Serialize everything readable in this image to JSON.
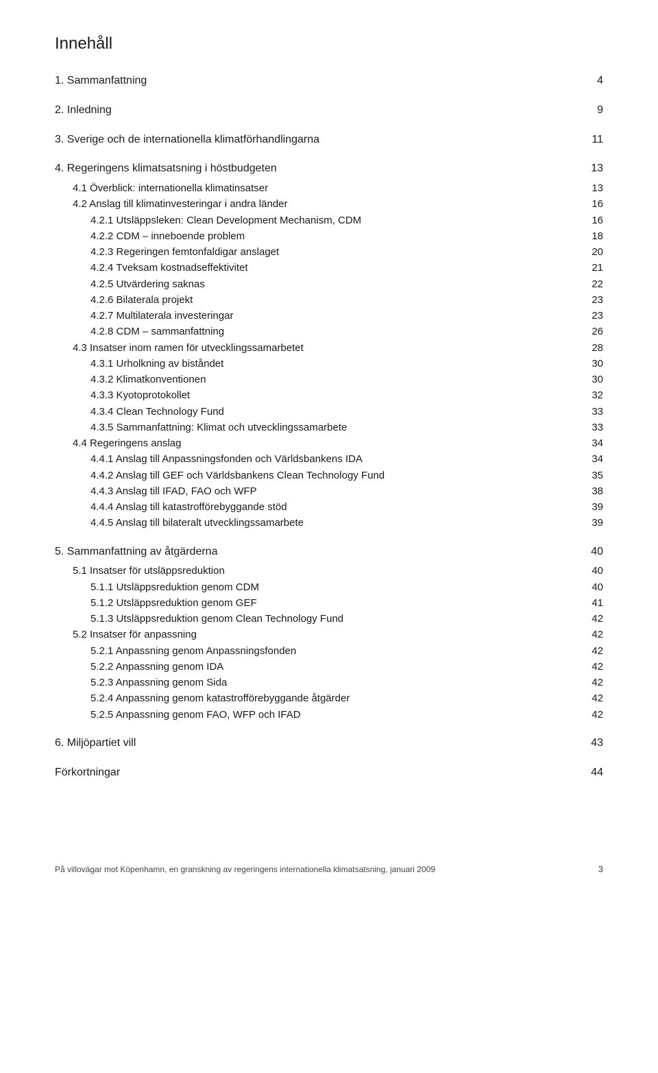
{
  "title": "Innehåll",
  "toc": [
    {
      "level": 1,
      "label": "1. Sammanfattning",
      "page": "4"
    },
    {
      "level": 1,
      "label": "2. Inledning",
      "page": "9"
    },
    {
      "level": 1,
      "label": "3. Sverige och de internationella klimatförhandlingarna",
      "page": "11"
    },
    {
      "level": 1,
      "label": "4. Regeringens klimatsatsning i höstbudgeten",
      "page": "13"
    },
    {
      "level": 2,
      "label": "4.1 Överblick: internationella klimatinsatser",
      "page": "13"
    },
    {
      "level": 2,
      "label": "4.2 Anslag till klimatinvesteringar i andra länder",
      "page": "16"
    },
    {
      "level": 3,
      "label": "4.2.1 Utsläppsleken: Clean Development Mechanism, CDM",
      "page": "16"
    },
    {
      "level": 3,
      "label": "4.2.2 CDM – inneboende problem",
      "page": "18"
    },
    {
      "level": 3,
      "label": "4.2.3 Regeringen femtonfaldigar anslaget",
      "page": "20"
    },
    {
      "level": 3,
      "label": "4.2.4 Tveksam kostnadseffektivitet",
      "page": "21"
    },
    {
      "level": 3,
      "label": "4.2.5 Utvärdering saknas",
      "page": "22"
    },
    {
      "level": 3,
      "label": "4.2.6 Bilaterala projekt",
      "page": "23"
    },
    {
      "level": 3,
      "label": "4.2.7 Multilaterala investeringar",
      "page": "23"
    },
    {
      "level": 3,
      "label": "4.2.8 CDM – sammanfattning",
      "page": "26"
    },
    {
      "level": 2,
      "label": "4.3 Insatser inom ramen för utvecklingssamarbetet",
      "page": "28"
    },
    {
      "level": 3,
      "label": "4.3.1 Urholkning av biståndet",
      "page": "30"
    },
    {
      "level": 3,
      "label": "4.3.2 Klimatkonventionen",
      "page": "30"
    },
    {
      "level": 3,
      "label": "4.3.3 Kyotoprotokollet",
      "page": "32"
    },
    {
      "level": 3,
      "label": "4.3.4 Clean Technology Fund",
      "page": "33"
    },
    {
      "level": 3,
      "label": "4.3.5 Sammanfattning: Klimat och utvecklingssamarbete",
      "page": "33"
    },
    {
      "level": 2,
      "label": "4.4 Regeringens anslag",
      "page": "34"
    },
    {
      "level": 3,
      "label": "4.4.1 Anslag till Anpassningsfonden och Världsbankens IDA",
      "page": "34"
    },
    {
      "level": 3,
      "label": "4.4.2 Anslag till GEF och Världsbankens Clean Technology Fund",
      "page": "35"
    },
    {
      "level": 3,
      "label": "4.4.3 Anslag till IFAD, FAO och WFP",
      "page": "38"
    },
    {
      "level": 3,
      "label": "4.4.4 Anslag till katastrofförebyggande stöd",
      "page": "39"
    },
    {
      "level": 3,
      "label": "4.4.5 Anslag till bilateralt utvecklingssamarbete",
      "page": "39"
    },
    {
      "level": 1,
      "label": "5. Sammanfattning av åtgärderna",
      "page": "40"
    },
    {
      "level": 2,
      "label": "5.1 Insatser för utsläppsreduktion",
      "page": "40"
    },
    {
      "level": 3,
      "label": "5.1.1 Utsläppsreduktion genom CDM",
      "page": "40"
    },
    {
      "level": 3,
      "label": "5.1.2 Utsläppsreduktion genom GEF",
      "page": "41"
    },
    {
      "level": 3,
      "label": "5.1.3 Utsläppsreduktion genom Clean Technology Fund",
      "page": "42"
    },
    {
      "level": 2,
      "label": "5.2 Insatser för anpassning",
      "page": "42"
    },
    {
      "level": 3,
      "label": "5.2.1 Anpassning genom Anpassningsfonden",
      "page": "42"
    },
    {
      "level": 3,
      "label": "5.2.2 Anpassning genom IDA",
      "page": "42"
    },
    {
      "level": 3,
      "label": "5.2.3 Anpassning genom Sida",
      "page": "42"
    },
    {
      "level": 3,
      "label": "5.2.4 Anpassning genom katastrofförebyggande åtgärder",
      "page": "42"
    },
    {
      "level": 3,
      "label": "5.2.5 Anpassning genom FAO, WFP och IFAD",
      "page": "42"
    },
    {
      "level": 1,
      "label": "6. Miljöpartiet vill",
      "page": "43"
    },
    {
      "level": 1,
      "label": "Förkortningar",
      "page": "44"
    }
  ],
  "footer": {
    "text": "På villovägar mot Köpenhamn, en granskning av regeringens internationella klimatsatsning, januari 2009",
    "page_number": "3"
  }
}
